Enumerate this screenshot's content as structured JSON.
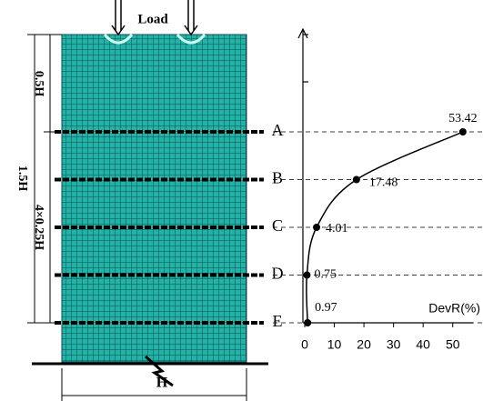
{
  "diagram": {
    "load_label": "Load",
    "width_label": "H",
    "total_height_label": "1.5H",
    "top_height_label": "0.5H",
    "segments_label": "4×0.25H"
  },
  "chart_data": {
    "type": "line",
    "categories": [
      "A",
      "B",
      "C",
      "D",
      "E"
    ],
    "values": [
      53.42,
      17.48,
      4.01,
      0.75,
      0.97
    ],
    "xlabel": "DevR(%)",
    "xlim": [
      0,
      55
    ],
    "xticks": [
      0,
      10,
      20,
      30,
      40,
      50
    ],
    "color": "#000000"
  }
}
